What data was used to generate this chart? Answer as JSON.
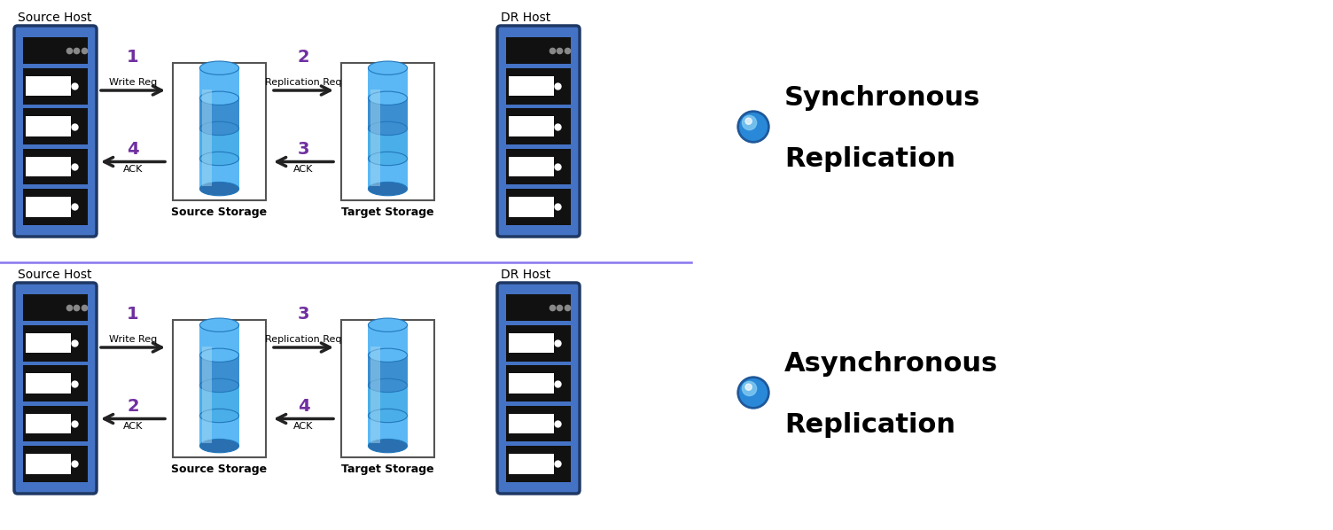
{
  "bg_color": "#ffffff",
  "divider_color": "#7B68EE",
  "purple": "#7030A0",
  "blue_server": "#4472C4",
  "server_edge": "#1F3864",
  "arrow_color": "#333333",
  "sync_label": "Synchronous\nReplication",
  "async_label": "Asynchronous\nReplication",
  "top_source_host": "Source Host",
  "top_dr_host": "DR Host",
  "bot_source_host": "Source Host",
  "bot_dr_host": "DR Host",
  "top_source_storage": "Source Storage",
  "top_target_storage": "Target Storage",
  "bot_source_storage": "Source Storage",
  "bot_target_storage": "Target Storage",
  "figw": 15.04,
  "figh": 5.98,
  "dpi": 100
}
